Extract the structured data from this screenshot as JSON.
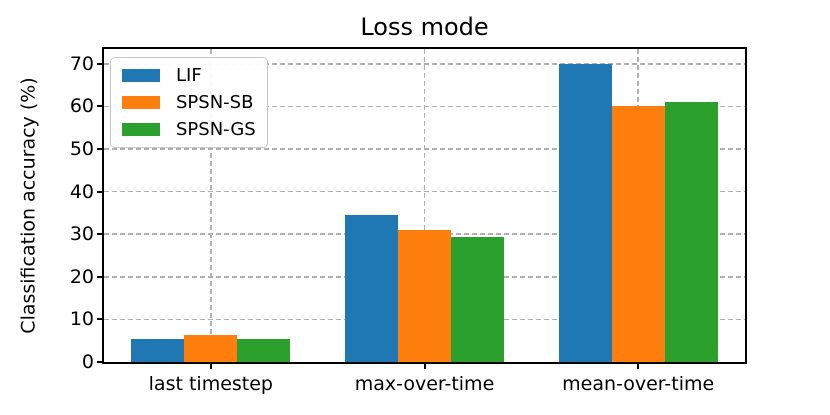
{
  "title": "Loss mode",
  "chart_data": {
    "type": "bar",
    "title": "Loss mode",
    "xlabel": "",
    "ylabel": "Classification accuracy (%)",
    "categories": [
      "last timestep",
      "max-over-time",
      "mean-over-time"
    ],
    "series": [
      {
        "name": "LIF",
        "color": "#1f77b4",
        "values": [
          5.4,
          34.5,
          69.9
        ]
      },
      {
        "name": "SPSN-SB",
        "color": "#ff7f0e",
        "values": [
          6.3,
          30.9,
          60.2
        ]
      },
      {
        "name": "SPSN-GS",
        "color": "#2ca02c",
        "values": [
          5.4,
          29.3,
          61.0
        ]
      }
    ],
    "ylim": [
      0,
      73.5
    ],
    "yticks": [
      0,
      10,
      20,
      30,
      40,
      50,
      60,
      70
    ],
    "grid": true,
    "grid_color": "#b0b0b0",
    "legend_position": "upper left",
    "bar_edge": "none"
  }
}
